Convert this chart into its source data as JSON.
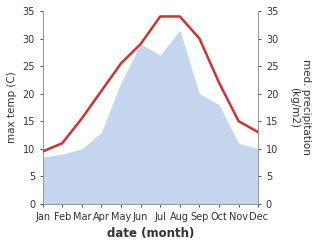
{
  "months": [
    "Jan",
    "Feb",
    "Mar",
    "Apr",
    "May",
    "Jun",
    "Jul",
    "Aug",
    "Sep",
    "Oct",
    "Nov",
    "Dec"
  ],
  "temp": [
    9.5,
    11.0,
    15.5,
    20.5,
    25.5,
    29.0,
    34.0,
    34.0,
    30.0,
    22.0,
    15.0,
    13.0
  ],
  "precip": [
    8.5,
    9.0,
    10.0,
    13.0,
    22.0,
    29.0,
    27.0,
    31.5,
    20.0,
    18.0,
    11.0,
    10.0
  ],
  "temp_color": "#cc3333",
  "precip_color": "#c5d5ee",
  "ylim_left": [
    0,
    35
  ],
  "ylim_right": [
    0,
    35
  ],
  "yticks": [
    0,
    5,
    10,
    15,
    20,
    25,
    30,
    35
  ],
  "ylabel_left": "max temp (C)",
  "ylabel_right": "med. precipitation\n(kg/m2)",
  "xlabel": "date (month)",
  "bg_color": "#ffffff",
  "spine_color": "#999999",
  "tick_color": "#333333",
  "label_fontsize": 7.5,
  "tick_fontsize": 7,
  "xlabel_fontsize": 8.5,
  "xlabel_fontweight": "bold",
  "line_width": 1.8
}
